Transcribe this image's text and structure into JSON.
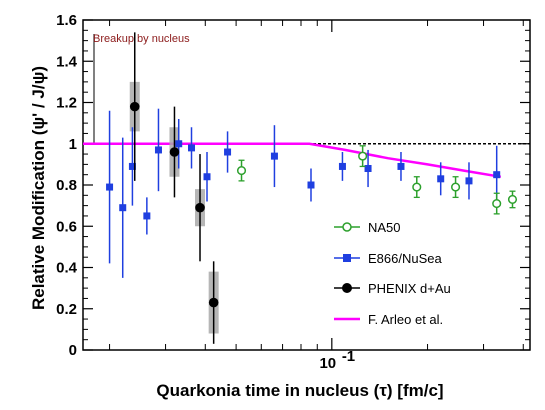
{
  "chart_data": {
    "type": "scatter",
    "title": "",
    "xlabel": "Quarkonia time in nucleus (τ) [fm/c]",
    "ylabel": "Relative Modification (ψ' / J/ψ)",
    "xscale": "log",
    "xlim": [
      0.0165,
      0.42
    ],
    "ylim": [
      0,
      1.6
    ],
    "y_ticks": [
      "0",
      "0.2",
      "0.4",
      "0.6",
      "0.8",
      "1",
      "1.2",
      "1.4",
      "1.6"
    ],
    "x_tick_label": "10",
    "x_tick_exponent": "-1",
    "x_tick_value": 0.1,
    "annotation": "Breakup by nucleus",
    "reference_line": {
      "y": 1.0,
      "style": "dashed"
    },
    "grid": false,
    "legend_position": "bottom-right",
    "series": [
      {
        "name": "NA50",
        "marker": "open-circle",
        "color": "#2ca02c",
        "points": [
          {
            "x": 0.052,
            "y": 0.87,
            "err": 0.05
          },
          {
            "x": 0.125,
            "y": 0.94,
            "err": 0.05
          },
          {
            "x": 0.185,
            "y": 0.79,
            "err": 0.05
          },
          {
            "x": 0.245,
            "y": 0.79,
            "err": 0.05
          },
          {
            "x": 0.33,
            "y": 0.71,
            "err": 0.05
          },
          {
            "x": 0.37,
            "y": 0.73,
            "err": 0.04
          }
        ]
      },
      {
        "name": "E866/NuSea",
        "marker": "filled-square",
        "color": "#1f3fe0",
        "points": [
          {
            "x": 0.02,
            "y": 0.79,
            "err": 0.37
          },
          {
            "x": 0.022,
            "y": 0.69,
            "err": 0.34
          },
          {
            "x": 0.0236,
            "y": 0.89,
            "err": 0.19
          },
          {
            "x": 0.0262,
            "y": 0.65,
            "err": 0.09
          },
          {
            "x": 0.0285,
            "y": 0.97,
            "err": 0.2
          },
          {
            "x": 0.033,
            "y": 1.0,
            "err": 0.12
          },
          {
            "x": 0.0362,
            "y": 0.98,
            "err": 0.1
          },
          {
            "x": 0.0405,
            "y": 0.84,
            "err": 0.12
          },
          {
            "x": 0.047,
            "y": 0.96,
            "err": 0.1
          },
          {
            "x": 0.066,
            "y": 0.94,
            "err": 0.15
          },
          {
            "x": 0.086,
            "y": 0.8,
            "err": 0.08
          },
          {
            "x": 0.108,
            "y": 0.89,
            "err": 0.07
          },
          {
            "x": 0.13,
            "y": 0.88,
            "err": 0.09
          },
          {
            "x": 0.165,
            "y": 0.89,
            "err": 0.07
          },
          {
            "x": 0.22,
            "y": 0.83,
            "err": 0.08
          },
          {
            "x": 0.27,
            "y": 0.82,
            "err": 0.09
          },
          {
            "x": 0.33,
            "y": 0.85,
            "err": 0.14
          }
        ]
      },
      {
        "name": "PHENIX d+Au",
        "marker": "filled-circle",
        "color": "#000000",
        "points": [
          {
            "x": 0.024,
            "y": 1.18,
            "err": 0.36,
            "sys": 0.12
          },
          {
            "x": 0.032,
            "y": 0.96,
            "err": 0.22,
            "sys": 0.12
          },
          {
            "x": 0.0385,
            "y": 0.69,
            "err": 0.26,
            "sys": 0.09
          },
          {
            "x": 0.0425,
            "y": 0.23,
            "err": 0.2,
            "sys": 0.15
          }
        ]
      },
      {
        "name": "F. Arleo et al.",
        "marker": "line",
        "color": "#ff00ff",
        "points": [
          {
            "x": 0.0165,
            "y": 1.0
          },
          {
            "x": 0.085,
            "y": 1.0
          },
          {
            "x": 0.11,
            "y": 0.97
          },
          {
            "x": 0.15,
            "y": 0.93
          },
          {
            "x": 0.2,
            "y": 0.9
          },
          {
            "x": 0.26,
            "y": 0.87
          },
          {
            "x": 0.34,
            "y": 0.84
          }
        ]
      }
    ]
  }
}
